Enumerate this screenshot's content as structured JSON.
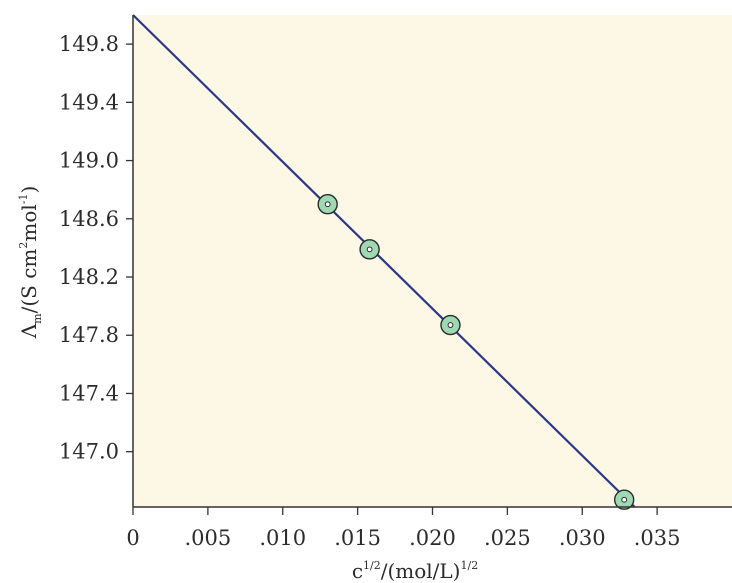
{
  "chart_data": {
    "type": "scatter",
    "x": [
      0.013,
      0.0158,
      0.0212,
      0.0328
    ],
    "y": [
      148.7,
      148.39,
      147.87,
      146.67
    ],
    "fit_line": {
      "from": [
        0,
        150.0
      ],
      "to": [
        0.0335,
        146.62
      ]
    },
    "xlim": [
      0,
      0.04
    ],
    "ylim": [
      146.62,
      150.0
    ],
    "x_ticks": [
      {
        "value": 0,
        "label": "0"
      },
      {
        "value": 0.005,
        "label": ".005"
      },
      {
        "value": 0.01,
        "label": ".010"
      },
      {
        "value": 0.015,
        "label": ".015"
      },
      {
        "value": 0.02,
        "label": ".020"
      },
      {
        "value": 0.025,
        "label": ".025"
      },
      {
        "value": 0.03,
        "label": ".030"
      },
      {
        "value": 0.035,
        "label": ".035"
      }
    ],
    "y_ticks": [
      {
        "value": 149.8,
        "label": "149.8"
      },
      {
        "value": 149.4,
        "label": "149.4"
      },
      {
        "value": 149.0,
        "label": "149.0"
      },
      {
        "value": 148.6,
        "label": "148.6"
      },
      {
        "value": 148.2,
        "label": "148.2"
      },
      {
        "value": 147.8,
        "label": "147.8"
      },
      {
        "value": 147.4,
        "label": "147.4"
      },
      {
        "value": 147.0,
        "label": "147.0"
      }
    ],
    "xlabel": {
      "base": "c",
      "exp": "1/2",
      "unit": "/(mol/L)",
      "unit_exp": "1/2"
    },
    "ylabel": {
      "symbol": "Λ",
      "sub": "m",
      "unit_start": "/(S cm",
      "sup1": "2",
      "unit_mid": "mol",
      "sup2": "-1",
      "unit_end": ")"
    },
    "grid": false,
    "colors": {
      "plot_background": "#fdf8e6",
      "line": "#2b3788",
      "marker_fill": "#9ed9b4",
      "marker_stroke": "#2b2b2b",
      "axis": "#333333",
      "text": "#2b2b2b"
    }
  }
}
